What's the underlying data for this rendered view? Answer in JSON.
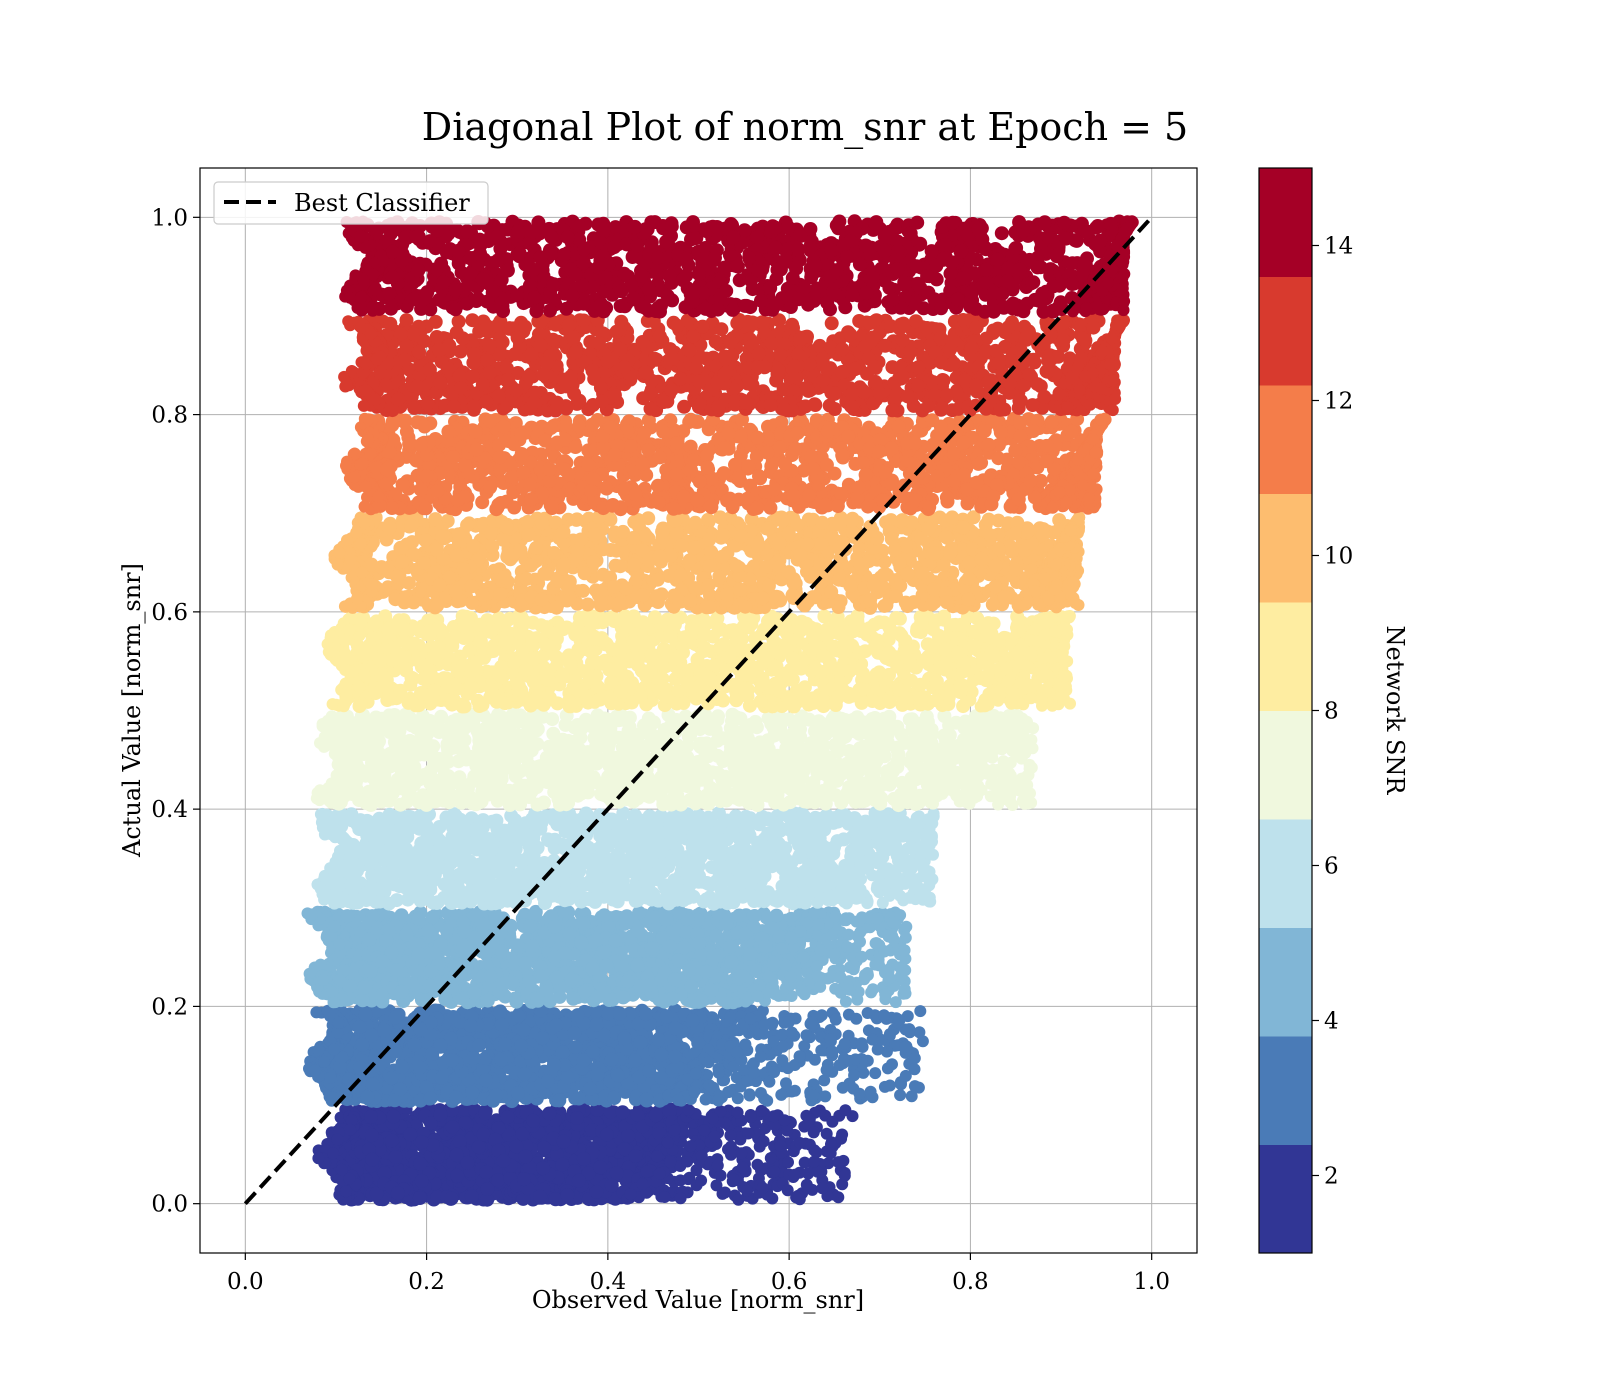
{
  "chart_data": {
    "type": "scatter",
    "title": "Diagonal Plot of norm_snr at Epoch = 5",
    "xlabel": "Observed Value [norm_snr]",
    "ylabel": "Actual Value [norm_snr]",
    "xlim": [
      -0.05,
      1.05
    ],
    "ylim": [
      -0.05,
      1.05
    ],
    "xticks": [
      0.0,
      0.2,
      0.4,
      0.6,
      0.8,
      1.0
    ],
    "xtick_labels": [
      "0.0",
      "0.2",
      "0.4",
      "0.6",
      "0.8",
      "1.0"
    ],
    "yticks": [
      0.0,
      0.2,
      0.4,
      0.6,
      0.8,
      1.0
    ],
    "ytick_labels": [
      "0.0",
      "0.2",
      "0.4",
      "0.6",
      "0.8",
      "1.0"
    ],
    "grid": true,
    "legend": {
      "placement": "top-left",
      "entries": [
        "Best Classifier"
      ]
    },
    "reference_line": {
      "name": "Best Classifier",
      "style": "dashed",
      "color": "#000000",
      "x": [
        0.0,
        1.0
      ],
      "y": [
        0.0,
        1.0
      ]
    },
    "colorbar": {
      "label": "Network SNR",
      "range": [
        1,
        15
      ],
      "ticks": [
        2,
        4,
        6,
        8,
        10,
        12,
        14
      ],
      "tick_labels": [
        "2",
        "4",
        "6",
        "8",
        "10",
        "12",
        "14"
      ],
      "colors": [
        "#313695",
        "#4575b4",
        "#74add1",
        "#abd9e9",
        "#e0f3f8",
        "#ffffbf",
        "#fee090",
        "#fdae61",
        "#f46d43",
        "#d73027",
        "#a50026"
      ],
      "band_colors": [
        "#313695",
        "#4a7bb7",
        "#81b6d6",
        "#bee1ec",
        "#f0f8de",
        "#feeda1",
        "#fdbd6f",
        "#f47d4a",
        "#d83a2e",
        "#a50026"
      ]
    },
    "bands": [
      {
        "snr_range": [
          1.0,
          2.4
        ],
        "color": "#313695",
        "y_range": [
          0.0,
          0.1
        ],
        "x_min": 0.11,
        "x_max_core": 0.47,
        "x_max_scatter": 0.67
      },
      {
        "snr_range": [
          2.4,
          3.8
        ],
        "color": "#4a7bb7",
        "y_range": [
          0.1,
          0.2
        ],
        "x_min": 0.1,
        "x_max_core": 0.52,
        "x_max_scatter": 0.75
      },
      {
        "snr_range": [
          3.8,
          5.2
        ],
        "color": "#81b6d6",
        "y_range": [
          0.2,
          0.3
        ],
        "x_min": 0.1,
        "x_max_core": 0.6,
        "x_max_scatter": 0.73
      },
      {
        "snr_range": [
          5.2,
          6.6
        ],
        "color": "#bee1ec",
        "y_range": [
          0.3,
          0.4
        ],
        "x_min": 0.11,
        "x_max_core": 0.68,
        "x_max_scatter": 0.76
      },
      {
        "snr_range": [
          6.6,
          8.0
        ],
        "color": "#f0f8de",
        "y_range": [
          0.4,
          0.5
        ],
        "x_min": 0.11,
        "x_max_core": 0.79,
        "x_max_scatter": 0.87
      },
      {
        "snr_range": [
          8.0,
          9.4
        ],
        "color": "#feeda1",
        "y_range": [
          0.5,
          0.6
        ],
        "x_min": 0.12,
        "x_max_core": 0.86,
        "x_max_scatter": 0.91
      },
      {
        "snr_range": [
          9.4,
          10.8
        ],
        "color": "#fdbd6f",
        "y_range": [
          0.6,
          0.7
        ],
        "x_min": 0.13,
        "x_max_core": 0.9,
        "x_max_scatter": 0.92
      },
      {
        "snr_range": [
          10.8,
          12.2
        ],
        "color": "#f47d4a",
        "y_range": [
          0.7,
          0.8
        ],
        "x_min": 0.14,
        "x_max_core": 0.93,
        "x_max_scatter": 0.94
      },
      {
        "snr_range": [
          12.2,
          13.6
        ],
        "color": "#d83a2e",
        "y_range": [
          0.8,
          0.9
        ],
        "x_min": 0.14,
        "x_max_core": 0.95,
        "x_max_scatter": 0.96
      },
      {
        "snr_range": [
          13.6,
          15.0
        ],
        "color": "#a50026",
        "y_range": [
          0.9,
          1.0
        ],
        "x_min": 0.14,
        "x_max_core": 0.96,
        "x_max_scatter": 0.97
      }
    ]
  }
}
